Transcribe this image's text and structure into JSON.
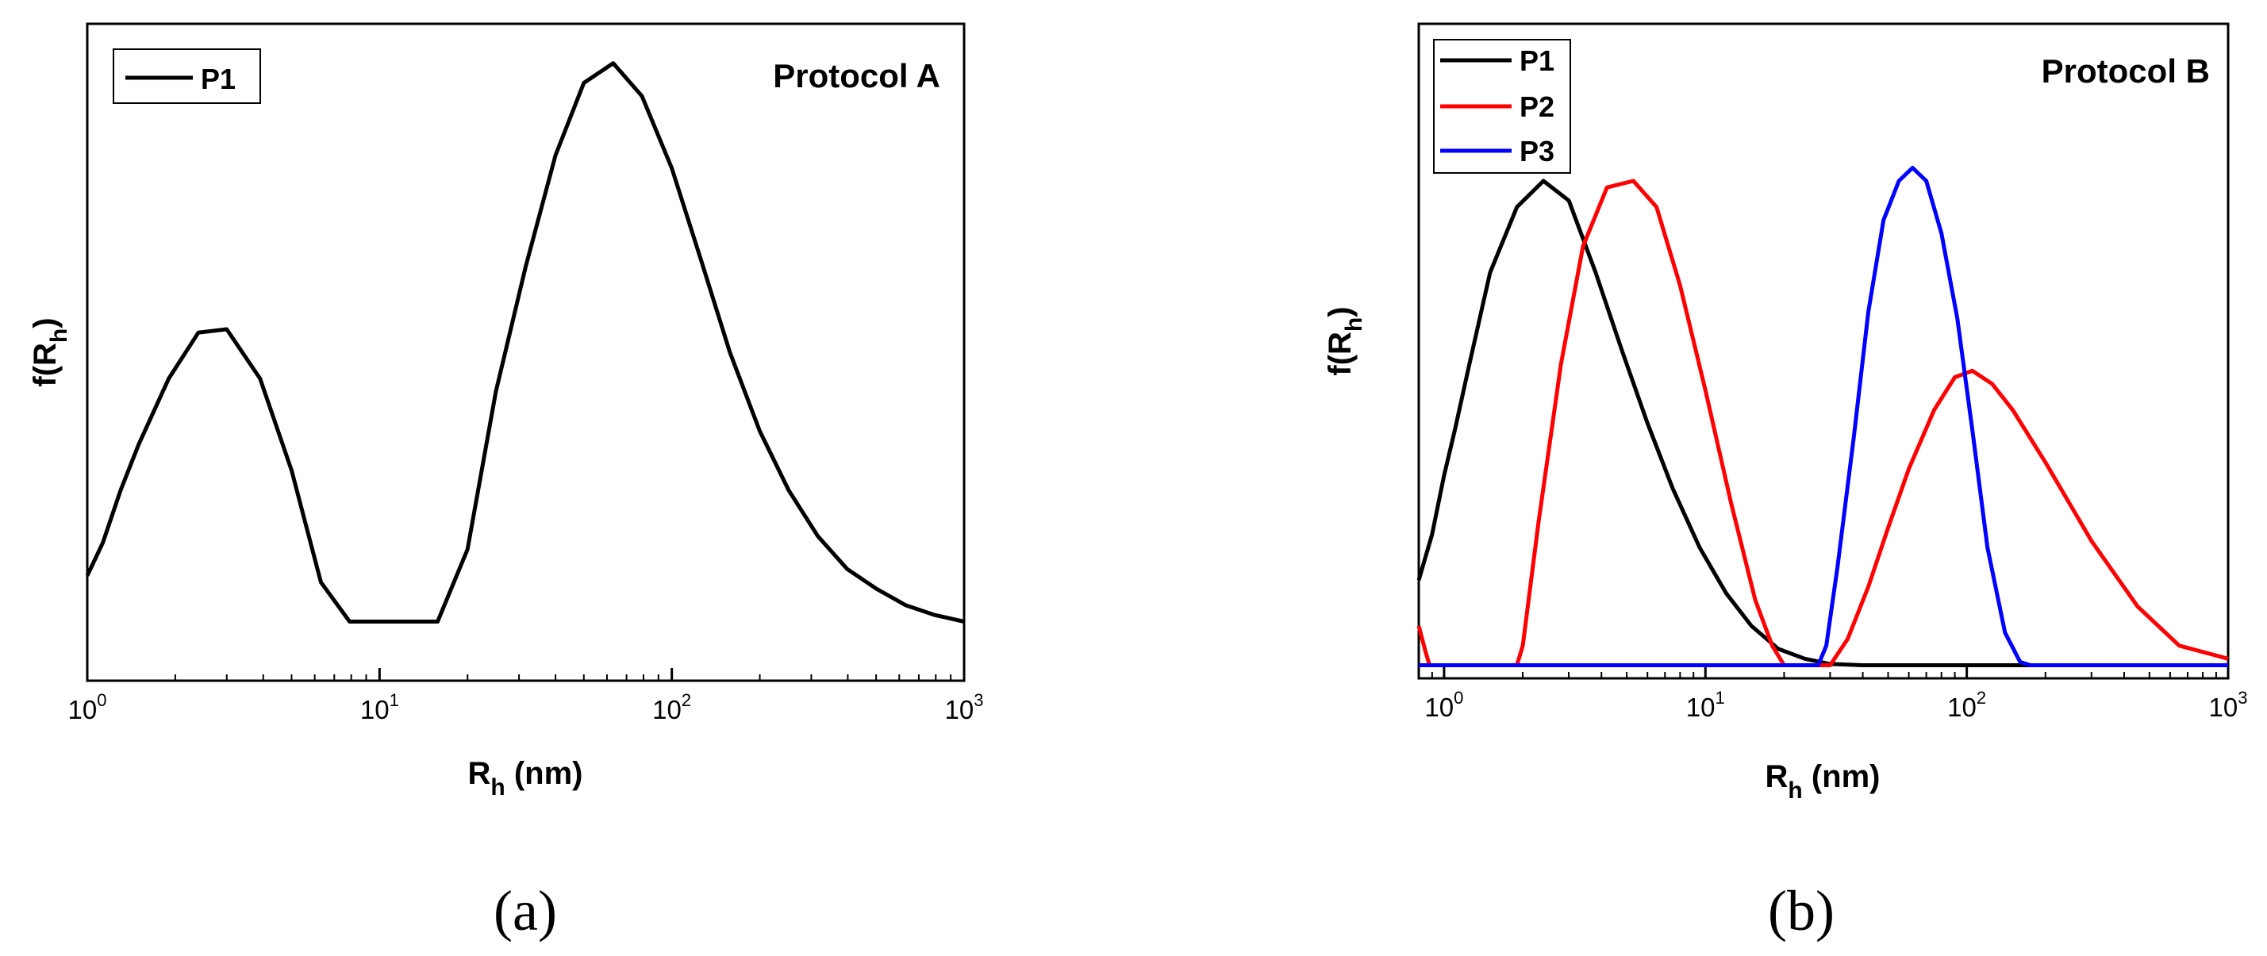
{
  "figure": {
    "caption_a": "(a)",
    "caption_b": "(b)"
  },
  "chart_data": [
    {
      "type": "line",
      "panel": "a",
      "title": "Protocol A",
      "xlabel": "R",
      "xlabel_sub": "h",
      "xlabel_unit": " (nm)",
      "ylabel": "f(R",
      "ylabel_sub": "h",
      "ylabel_end": ")",
      "xscale": "log",
      "xlim": [
        1,
        1000
      ],
      "ylim": [
        0,
        1.0
      ],
      "xticks": [
        {
          "base": "10",
          "exp": "0",
          "value": 1
        },
        {
          "base": "10",
          "exp": "1",
          "value": 10
        },
        {
          "base": "10",
          "exp": "2",
          "value": 100
        },
        {
          "base": "10",
          "exp": "3",
          "value": 1000
        }
      ],
      "legend_position": "top-left",
      "series": [
        {
          "name": "P1",
          "color": "#000000",
          "x": [
            1.0,
            1.13,
            1.3,
            1.5,
            1.9,
            2.4,
            3.0,
            3.9,
            5.0,
            6.3,
            7.9,
            10,
            12.6,
            15.8,
            20,
            25,
            31.6,
            40,
            50,
            63,
            79,
            100,
            126,
            158,
            200,
            251,
            316,
            398,
            501,
            631,
            794,
            1000
          ],
          "y": [
            0.16,
            0.21,
            0.29,
            0.36,
            0.46,
            0.53,
            0.535,
            0.46,
            0.32,
            0.15,
            0.09,
            0.09,
            0.09,
            0.09,
            0.2,
            0.44,
            0.63,
            0.8,
            0.91,
            0.94,
            0.89,
            0.78,
            0.64,
            0.5,
            0.38,
            0.29,
            0.22,
            0.17,
            0.14,
            0.115,
            0.1,
            0.09
          ]
        }
      ]
    },
    {
      "type": "line",
      "panel": "b",
      "title": "Protocol B",
      "xlabel": "R",
      "xlabel_sub": "h",
      "xlabel_unit": " (nm)",
      "ylabel": "f(R",
      "ylabel_sub": "h",
      "ylabel_end": ")",
      "xscale": "log",
      "xlim": [
        0.8,
        1000
      ],
      "ylim": [
        0,
        1.0
      ],
      "xticks": [
        {
          "base": "10",
          "exp": "0",
          "value": 1
        },
        {
          "base": "10",
          "exp": "1",
          "value": 10
        },
        {
          "base": "10",
          "exp": "2",
          "value": 100
        },
        {
          "base": "10",
          "exp": "3",
          "value": 1000
        }
      ],
      "legend_position": "top-left",
      "series": [
        {
          "name": "P1",
          "color": "#000000",
          "x": [
            0.8,
            0.9,
            1.0,
            1.1,
            1.25,
            1.5,
            1.9,
            2.4,
            3.0,
            3.8,
            4.8,
            6.0,
            7.5,
            9.5,
            12,
            15,
            19,
            24,
            30,
            40,
            60,
            100,
            200,
            400,
            1000
          ],
          "y": [
            0.15,
            0.22,
            0.31,
            0.38,
            0.48,
            0.62,
            0.72,
            0.76,
            0.73,
            0.62,
            0.5,
            0.39,
            0.29,
            0.2,
            0.13,
            0.08,
            0.045,
            0.03,
            0.022,
            0.02,
            0.02,
            0.02,
            0.02,
            0.02,
            0.02
          ]
        },
        {
          "name": "P2",
          "color": "#ff0000",
          "x": [
            0.8,
            0.85,
            0.88,
            1.0,
            1.5,
            1.9,
            2.0,
            2.3,
            2.8,
            3.4,
            4.2,
            5.3,
            6.5,
            8.0,
            10,
            12.5,
            15.5,
            18,
            20,
            25,
            27.5,
            30,
            35,
            42,
            50,
            60,
            75,
            90,
            105,
            125,
            150,
            200,
            300,
            450,
            650,
            1000
          ],
          "y": [
            0.08,
            0.04,
            0.02,
            0.02,
            0.02,
            0.02,
            0.05,
            0.24,
            0.48,
            0.66,
            0.75,
            0.76,
            0.72,
            0.6,
            0.44,
            0.27,
            0.12,
            0.05,
            0.02,
            0.02,
            0.02,
            0.02,
            0.06,
            0.14,
            0.23,
            0.32,
            0.41,
            0.46,
            0.47,
            0.45,
            0.41,
            0.33,
            0.21,
            0.11,
            0.05,
            0.03
          ]
        },
        {
          "name": "P3",
          "color": "#0000ff",
          "x": [
            0.8,
            10,
            27,
            29,
            32,
            37,
            42,
            48,
            55,
            62,
            70,
            80,
            92,
            105,
            120,
            140,
            160,
            175,
            300,
            1000
          ],
          "y": [
            0.02,
            0.02,
            0.02,
            0.05,
            0.17,
            0.37,
            0.56,
            0.7,
            0.76,
            0.78,
            0.76,
            0.68,
            0.55,
            0.38,
            0.2,
            0.07,
            0.025,
            0.02,
            0.02,
            0.02
          ]
        }
      ]
    }
  ]
}
